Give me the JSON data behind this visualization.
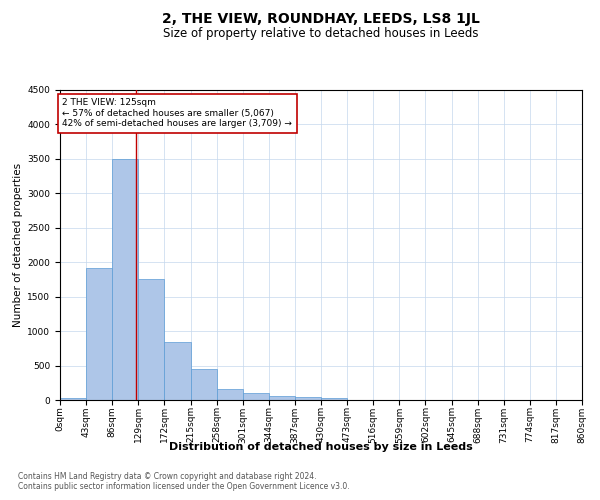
{
  "title": "2, THE VIEW, ROUNDHAY, LEEDS, LS8 1JL",
  "subtitle": "Size of property relative to detached houses in Leeds",
  "xlabel": "Distribution of detached houses by size in Leeds",
  "ylabel": "Number of detached properties",
  "footnote1": "Contains HM Land Registry data © Crown copyright and database right 2024.",
  "footnote2": "Contains public sector information licensed under the Open Government Licence v3.0.",
  "bin_labels": [
    "0sqm",
    "43sqm",
    "86sqm",
    "129sqm",
    "172sqm",
    "215sqm",
    "258sqm",
    "301sqm",
    "344sqm",
    "387sqm",
    "430sqm",
    "473sqm",
    "516sqm",
    "559sqm",
    "602sqm",
    "645sqm",
    "688sqm",
    "731sqm",
    "774sqm",
    "817sqm",
    "860sqm"
  ],
  "bar_values": [
    30,
    1920,
    3500,
    1760,
    840,
    450,
    160,
    100,
    60,
    40,
    25,
    0,
    0,
    0,
    0,
    0,
    0,
    0,
    0,
    0
  ],
  "bar_color": "#aec6e8",
  "bar_edge_color": "#5b9bd5",
  "ylim": [
    0,
    4500
  ],
  "yticks": [
    0,
    500,
    1000,
    1500,
    2000,
    2500,
    3000,
    3500,
    4000,
    4500
  ],
  "property_line_x": 125,
  "property_line_color": "#c00000",
  "annotation_text": "2 THE VIEW: 125sqm\n← 57% of detached houses are smaller (5,067)\n42% of semi-detached houses are larger (3,709) →",
  "annotation_box_color": "#c00000",
  "bin_width": 43,
  "background_color": "#ffffff",
  "grid_color": "#c5d8ed",
  "title_fontsize": 10,
  "subtitle_fontsize": 8.5,
  "xlabel_fontsize": 8,
  "ylabel_fontsize": 7.5,
  "tick_fontsize": 6.5,
  "footnote_fontsize": 5.5
}
